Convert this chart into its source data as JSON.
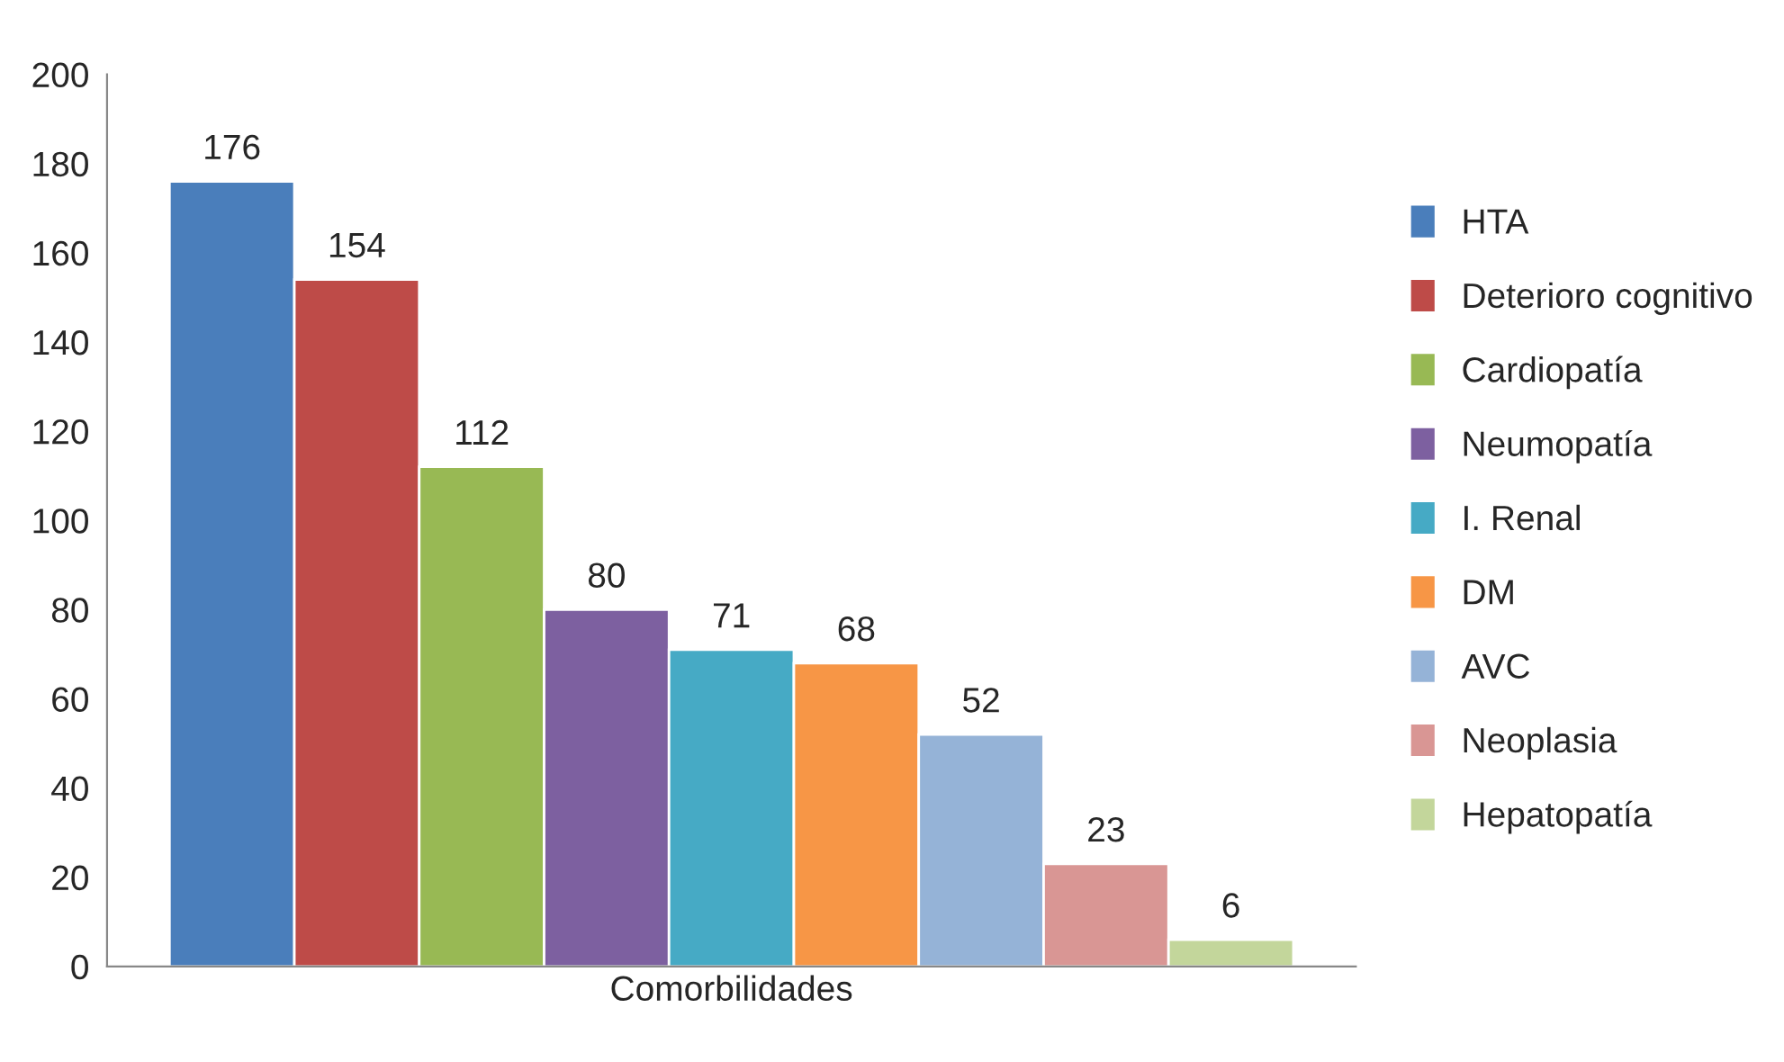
{
  "chart_data": {
    "type": "bar",
    "categories": [
      "Comorbilidades"
    ],
    "series": [
      {
        "name": "HTA",
        "color": "#4a7ebb",
        "values": [
          176
        ]
      },
      {
        "name": "Deterioro cognitivo",
        "color": "#be4b48",
        "values": [
          154
        ]
      },
      {
        "name": "Cardiopatía",
        "color": "#98b954",
        "values": [
          112
        ]
      },
      {
        "name": "Neumopatía",
        "color": "#7d60a0",
        "values": [
          80
        ]
      },
      {
        "name": "I. Renal",
        "color": "#46aac5",
        "values": [
          71
        ]
      },
      {
        "name": "DM",
        "color": "#f79646",
        "values": [
          68
        ]
      },
      {
        "name": "AVC",
        "color": "#95b3d7",
        "values": [
          52
        ]
      },
      {
        "name": "Neoplasia",
        "color": "#d99694",
        "values": [
          23
        ]
      },
      {
        "name": "Hepatopatía",
        "color": "#c3d69b",
        "values": [
          6
        ]
      }
    ],
    "ylim": [
      0,
      200
    ],
    "yticks": [
      0,
      20,
      40,
      60,
      80,
      100,
      120,
      140,
      160,
      180,
      200
    ],
    "data_labels": true,
    "legend": "right",
    "grid": false
  }
}
